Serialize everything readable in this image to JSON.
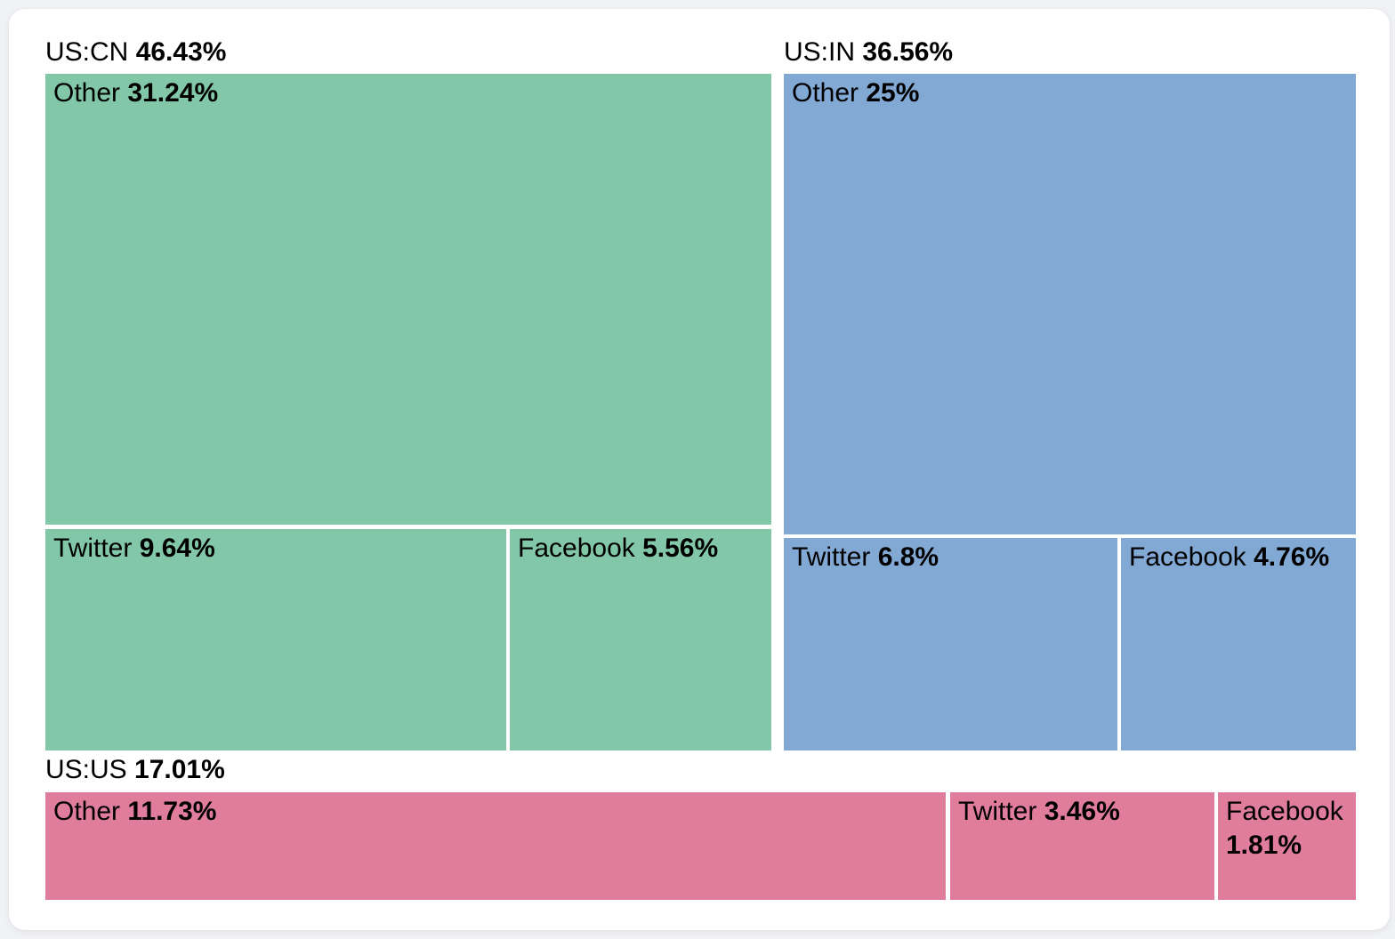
{
  "page": {
    "background_color": "#F1F2F5",
    "card_background_color": "#FFFFFF",
    "text_color": "#000000"
  },
  "chart_data": {
    "type": "treemap",
    "unit": "%",
    "groups": [
      {
        "name": "US:CN",
        "value": 46.43,
        "color": "#82C8A8",
        "children": [
          {
            "name": "Other",
            "value": 31.24
          },
          {
            "name": "Twitter",
            "value": 9.64
          },
          {
            "name": "Facebook",
            "value": 5.56
          }
        ]
      },
      {
        "name": "US:IN",
        "value": 36.56,
        "color": "#82A8D4",
        "children": [
          {
            "name": "Other",
            "value": 25
          },
          {
            "name": "Twitter",
            "value": 6.8
          },
          {
            "name": "Facebook",
            "value": 4.76
          }
        ]
      },
      {
        "name": "US:US",
        "value": 17.01,
        "color": "#E07D9D",
        "children": [
          {
            "name": "Other",
            "value": 11.73
          },
          {
            "name": "Twitter",
            "value": 3.46
          },
          {
            "name": "Facebook",
            "value": 1.81
          }
        ]
      }
    ],
    "colors": {
      "US:CN": "#82C8A8",
      "US:IN": "#82A8D4",
      "US:US": "#E07D9D"
    },
    "layout_hints": {
      "group_label_position": "top-left-outside",
      "cell_label_position": "top-left-inside",
      "label_format": "name value%"
    }
  },
  "treemap": {
    "groups": [
      {
        "name": "US:CN",
        "share": "46.43%",
        "cells": [
          {
            "name": "Other",
            "value": "31.24%"
          },
          {
            "name": "Twitter",
            "value": "9.64%"
          },
          {
            "name": "Facebook",
            "value": "5.56%"
          }
        ]
      },
      {
        "name": "US:IN",
        "share": "36.56%",
        "cells": [
          {
            "name": "Other",
            "value": "25%"
          },
          {
            "name": "Twitter",
            "value": "6.8%"
          },
          {
            "name": "Facebook",
            "value": "4.76%"
          }
        ]
      },
      {
        "name": "US:US",
        "share": "17.01%",
        "cells": [
          {
            "name": "Other",
            "value": "11.73%"
          },
          {
            "name": "Twitter",
            "value": "3.46%"
          },
          {
            "name": "Facebook",
            "value": "1.81%"
          }
        ]
      }
    ]
  }
}
